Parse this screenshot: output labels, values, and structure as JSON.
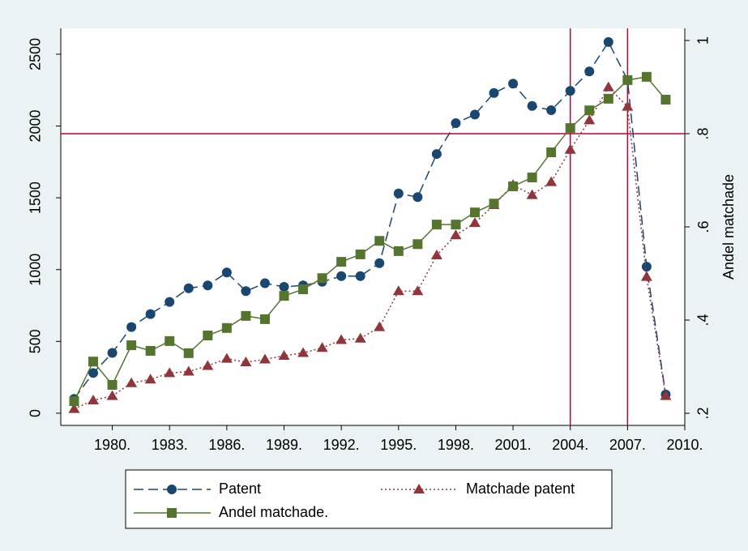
{
  "chart_data": {
    "type": "line",
    "y2_title": "Andel matchade",
    "x": [
      1978,
      1979,
      1980,
      1981,
      1982,
      1983,
      1984,
      1985,
      1986,
      1987,
      1988,
      1989,
      1990,
      1991,
      1992,
      1993,
      1994,
      1995,
      1996,
      1997,
      1998,
      1999,
      2000,
      2001,
      2002,
      2003,
      2004,
      2005,
      2006,
      2007,
      2008,
      2009
    ],
    "series": [
      {
        "name": "Patent",
        "color": "#1a476f",
        "dash": "12 6",
        "marker": "circle",
        "values": [
          100,
          280,
          420,
          600,
          690,
          775,
          870,
          890,
          980,
          850,
          905,
          880,
          890,
          915,
          955,
          955,
          1045,
          1530,
          1505,
          1805,
          2020,
          2080,
          2230,
          2295,
          2140,
          2110,
          2245,
          2380,
          2585,
          2320,
          1020,
          130
        ]
      },
      {
        "name": "Matchade patent",
        "color": "#90353b",
        "dash": "2 3",
        "marker": "triangle",
        "values": [
          30,
          90,
          120,
          210,
          235,
          280,
          290,
          330,
          380,
          355,
          375,
          400,
          420,
          455,
          510,
          520,
          600,
          850,
          850,
          1100,
          1240,
          1325,
          1450,
          1590,
          1520,
          1610,
          1835,
          2040,
          2270,
          2135,
          950,
          120
        ]
      },
      {
        "name": "Andel matchade.",
        "color": "#55752f",
        "dash": "",
        "marker": "square",
        "axis": "y2",
        "values": [
          0.226,
          0.311,
          0.261,
          0.346,
          0.334,
          0.355,
          0.329,
          0.367,
          0.383,
          0.409,
          0.402,
          0.452,
          0.466,
          0.49,
          0.525,
          0.541,
          0.57,
          0.548,
          0.563,
          0.605,
          0.605,
          0.631,
          0.65,
          0.687,
          0.706,
          0.76,
          0.812,
          0.85,
          0.875,
          0.915,
          0.922,
          0.873
        ]
      }
    ],
    "xlim": [
      1977.3,
      2010
    ],
    "xticks": [
      {
        "value": 1980,
        "label": "1980."
      },
      {
        "value": 1983,
        "label": "1983."
      },
      {
        "value": 1986,
        "label": "1986."
      },
      {
        "value": 1989,
        "label": "1989."
      },
      {
        "value": 1992,
        "label": "1992."
      },
      {
        "value": 1995,
        "label": "1995."
      },
      {
        "value": 1998,
        "label": "1998."
      },
      {
        "value": 2001,
        "label": "2001."
      },
      {
        "value": 2004,
        "label": "2004."
      },
      {
        "value": 2007,
        "label": "2007."
      },
      {
        "value": 2010,
        "label": "2010."
      }
    ],
    "ylim": [
      -85,
      2680
    ],
    "yticks": [
      0,
      500,
      1000,
      1500,
      2000,
      2500
    ],
    "y2lim": [
      0.174,
      1.026
    ],
    "y2ticks": [
      {
        "value": 0.2,
        "label": ".2"
      },
      {
        "value": 0.4,
        "label": ".4"
      },
      {
        "value": 0.6,
        "label": ".6"
      },
      {
        "value": 0.8,
        "label": ".8"
      },
      {
        "value": 1,
        "label": "1"
      }
    ],
    "x_reference_lines": [
      2004,
      2007
    ],
    "y2_reference_lines": [
      0.8
    ],
    "reference_color": "#c10534"
  }
}
